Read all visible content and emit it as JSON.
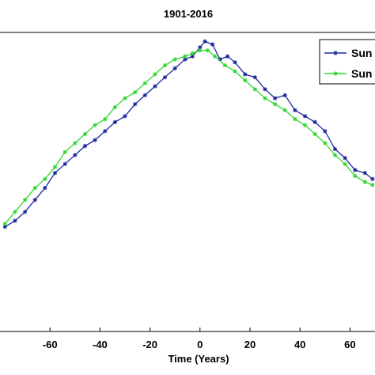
{
  "chart_data": {
    "type": "line",
    "title": "1901-2016",
    "xlabel": "Time (Years)",
    "ylabel": "",
    "xlim": [
      -80,
      70
    ],
    "ylim": [
      0,
      1
    ],
    "x_ticks": [
      -60,
      -40,
      -20,
      0,
      20,
      40,
      60
    ],
    "grid": false,
    "legend_position": "top-right",
    "series": [
      {
        "name": "Sun",
        "color": "#1f2a9c",
        "marker": "star",
        "points": [
          [
            -78,
            0.35
          ],
          [
            -74,
            0.37
          ],
          [
            -70,
            0.4
          ],
          [
            -66,
            0.44
          ],
          [
            -62,
            0.48
          ],
          [
            -58,
            0.53
          ],
          [
            -54,
            0.56
          ],
          [
            -50,
            0.59
          ],
          [
            -46,
            0.62
          ],
          [
            -42,
            0.64
          ],
          [
            -38,
            0.67
          ],
          [
            -34,
            0.7
          ],
          [
            -30,
            0.72
          ],
          [
            -26,
            0.76
          ],
          [
            -22,
            0.79
          ],
          [
            -18,
            0.82
          ],
          [
            -14,
            0.85
          ],
          [
            -10,
            0.88
          ],
          [
            -6,
            0.91
          ],
          [
            -3,
            0.92
          ],
          [
            0,
            0.95
          ],
          [
            2,
            0.97
          ],
          [
            5,
            0.96
          ],
          [
            8,
            0.91
          ],
          [
            11,
            0.92
          ],
          [
            14,
            0.9
          ],
          [
            18,
            0.86
          ],
          [
            22,
            0.85
          ],
          [
            26,
            0.81
          ],
          [
            30,
            0.78
          ],
          [
            34,
            0.79
          ],
          [
            38,
            0.74
          ],
          [
            42,
            0.72
          ],
          [
            46,
            0.7
          ],
          [
            50,
            0.67
          ],
          [
            54,
            0.61
          ],
          [
            58,
            0.58
          ],
          [
            62,
            0.54
          ],
          [
            66,
            0.53
          ],
          [
            69,
            0.51
          ]
        ]
      },
      {
        "name": "Sun",
        "color": "#33d633",
        "marker": "star",
        "points": [
          [
            -78,
            0.36
          ],
          [
            -74,
            0.4
          ],
          [
            -70,
            0.44
          ],
          [
            -66,
            0.48
          ],
          [
            -62,
            0.51
          ],
          [
            -58,
            0.55
          ],
          [
            -54,
            0.6
          ],
          [
            -50,
            0.63
          ],
          [
            -46,
            0.66
          ],
          [
            -42,
            0.69
          ],
          [
            -38,
            0.71
          ],
          [
            -34,
            0.75
          ],
          [
            -30,
            0.78
          ],
          [
            -26,
            0.8
          ],
          [
            -22,
            0.83
          ],
          [
            -18,
            0.86
          ],
          [
            -14,
            0.89
          ],
          [
            -10,
            0.91
          ],
          [
            -6,
            0.92
          ],
          [
            -3,
            0.93
          ],
          [
            0,
            0.94
          ],
          [
            3,
            0.94
          ],
          [
            6,
            0.92
          ],
          [
            10,
            0.89
          ],
          [
            14,
            0.87
          ],
          [
            18,
            0.84
          ],
          [
            22,
            0.81
          ],
          [
            26,
            0.78
          ],
          [
            30,
            0.76
          ],
          [
            34,
            0.74
          ],
          [
            38,
            0.71
          ],
          [
            42,
            0.69
          ],
          [
            46,
            0.66
          ],
          [
            50,
            0.63
          ],
          [
            54,
            0.59
          ],
          [
            58,
            0.56
          ],
          [
            62,
            0.52
          ],
          [
            66,
            0.5
          ],
          [
            69,
            0.49
          ]
        ]
      }
    ]
  }
}
